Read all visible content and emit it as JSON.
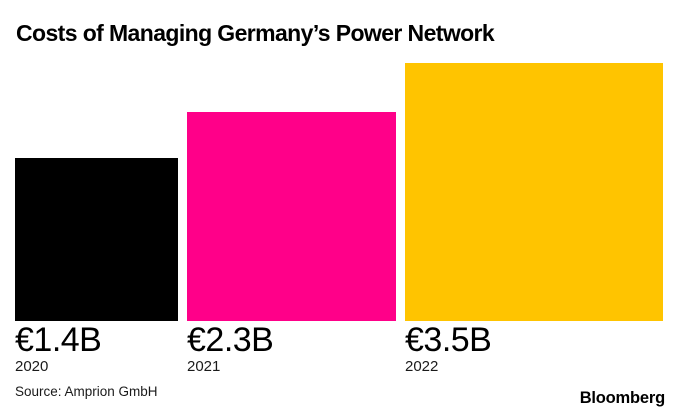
{
  "title": "Costs of Managing Germany’s Power Network",
  "source_note": "Source: Amprion GmbH",
  "brand": "Bloomberg",
  "chart_data": {
    "type": "bar",
    "style": "area-proportional-squares-on-common-baseline",
    "title": "Costs of Managing Germany’s Power Network",
    "categories": [
      "2020",
      "2021",
      "2022"
    ],
    "values": [
      1.4,
      2.3,
      3.5
    ],
    "value_labels": [
      "€1.4B",
      "€2.3B",
      "€3.5B"
    ],
    "unit": "billion euros",
    "colors": [
      "#000000",
      "#ff0089",
      "#ffc400"
    ],
    "xlabel": "",
    "ylabel": "",
    "grid": "off",
    "axes": "none",
    "legend": "none",
    "source": "Source: Amprion GmbH"
  }
}
